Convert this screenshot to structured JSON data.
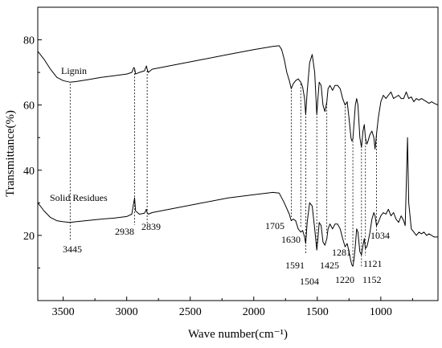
{
  "chart_data": {
    "type": "line",
    "title": "",
    "xlabel": "Wave number(cm⁻¹)",
    "ylabel": "Transmittance(%)",
    "xlim": [
      3700,
      550
    ],
    "ylim": [
      0,
      90
    ],
    "x_reversed": true,
    "grid": false,
    "xticks": [
      3500,
      3000,
      2500,
      2000,
      1500,
      1000
    ],
    "yticks": [
      20,
      40,
      60,
      80
    ],
    "series": [
      {
        "name": "Lignin",
        "x": [
          3700,
          3650,
          3600,
          3550,
          3500,
          3445,
          3400,
          3300,
          3200,
          3100,
          3000,
          2960,
          2945,
          2938,
          2930,
          2900,
          2860,
          2845,
          2839,
          2830,
          2800,
          2600,
          2400,
          2200,
          2000,
          1850,
          1800,
          1780,
          1760,
          1740,
          1720,
          1705,
          1690,
          1670,
          1650,
          1630,
          1615,
          1600,
          1591,
          1580,
          1560,
          1540,
          1520,
          1510,
          1504,
          1495,
          1485,
          1470,
          1455,
          1440,
          1425,
          1415,
          1400,
          1380,
          1360,
          1340,
          1320,
          1300,
          1281,
          1265,
          1250,
          1235,
          1228,
          1220,
          1210,
          1200,
          1190,
          1180,
          1165,
          1152,
          1140,
          1130,
          1121,
          1110,
          1100,
          1085,
          1070,
          1055,
          1045,
          1034,
          1020,
          1000,
          980,
          960,
          940,
          920,
          900,
          880,
          860,
          840,
          820,
          800,
          780,
          760,
          740,
          720,
          700,
          680,
          660,
          640,
          620,
          600,
          580,
          550
        ],
        "y": [
          76.5,
          74,
          71,
          68.5,
          67.5,
          67,
          67.2,
          67.8,
          68.5,
          69,
          69.5,
          70,
          71.5,
          71.2,
          69.5,
          70,
          70.5,
          72,
          71,
          70,
          71,
          72.5,
          74,
          75.5,
          77,
          78,
          78.2,
          77,
          74,
          70,
          67.5,
          65,
          66.5,
          67.5,
          68,
          67,
          65.5,
          62,
          57,
          64,
          73,
          75.5,
          70,
          62,
          57,
          62,
          67,
          66,
          60,
          58,
          61,
          65,
          66,
          64.5,
          66,
          66,
          65,
          62,
          60,
          61,
          56,
          50,
          49,
          49.5,
          55,
          60,
          62,
          60,
          50,
          47,
          52,
          54,
          50,
          48,
          49,
          51,
          52,
          50,
          46.5,
          51,
          56,
          61,
          63,
          62,
          63,
          64,
          62,
          62.5,
          63,
          62,
          62,
          64,
          62,
          62.5,
          61,
          62,
          61.5,
          62,
          61.5,
          61,
          60.5,
          61,
          60.5,
          60
        ]
      },
      {
        "name": "Solid Residues",
        "x": [
          3700,
          3650,
          3600,
          3550,
          3500,
          3445,
          3400,
          3300,
          3200,
          3100,
          3000,
          2960,
          2945,
          2938,
          2930,
          2900,
          2860,
          2845,
          2839,
          2830,
          2800,
          2600,
          2400,
          2200,
          2000,
          1850,
          1800,
          1760,
          1720,
          1705,
          1690,
          1670,
          1650,
          1630,
          1615,
          1600,
          1591,
          1580,
          1560,
          1540,
          1520,
          1510,
          1504,
          1495,
          1485,
          1470,
          1455,
          1440,
          1425,
          1415,
          1400,
          1380,
          1360,
          1340,
          1320,
          1300,
          1281,
          1265,
          1250,
          1235,
          1228,
          1220,
          1210,
          1200,
          1190,
          1180,
          1165,
          1152,
          1140,
          1130,
          1121,
          1110,
          1100,
          1085,
          1070,
          1055,
          1045,
          1034,
          1020,
          1000,
          980,
          960,
          940,
          920,
          900,
          880,
          860,
          840,
          820,
          808,
          800,
          790,
          780,
          760,
          740,
          720,
          700,
          680,
          660,
          640,
          620,
          600,
          580,
          550
        ],
        "y": [
          30,
          27.5,
          25.5,
          24.5,
          24.2,
          24,
          24.2,
          24.6,
          25,
          25.3,
          25.8,
          26.5,
          30,
          31.5,
          27.5,
          26.5,
          26.8,
          28,
          27,
          26.5,
          27,
          28.5,
          30,
          31.5,
          32.5,
          33.2,
          33,
          30,
          26.5,
          24.5,
          25,
          24.5,
          22,
          21,
          21.5,
          19.5,
          17.5,
          24,
          30,
          29,
          22,
          18,
          15.5,
          19,
          24,
          23,
          18,
          17,
          19,
          22,
          23.5,
          22,
          23.5,
          23.5,
          22,
          19,
          16.5,
          17.5,
          15,
          12,
          11,
          10.5,
          13,
          17,
          22,
          21,
          15,
          14,
          17,
          19,
          16,
          16.5,
          18,
          21,
          25,
          27,
          26,
          23,
          24,
          26,
          27,
          26.5,
          28,
          26,
          27,
          25,
          24,
          26,
          24.5,
          23,
          35,
          50,
          30,
          22,
          21,
          20,
          21,
          20.5,
          21,
          20,
          20.5,
          20,
          19.5,
          19.5
        ]
      }
    ],
    "annotations": [
      {
        "text": "Lignin",
        "type": "series-label"
      },
      {
        "text": "Solid Residues",
        "type": "series-label"
      },
      {
        "text": "3445",
        "peak": 3445
      },
      {
        "text": "2938",
        "peak": 2938
      },
      {
        "text": "2839",
        "peak": 2839
      },
      {
        "text": "1705",
        "peak": 1705
      },
      {
        "text": "1630",
        "peak": 1630
      },
      {
        "text": "1591",
        "peak": 1591
      },
      {
        "text": "1504",
        "peak": 1504
      },
      {
        "text": "1425",
        "peak": 1425
      },
      {
        "text": "1281",
        "peak": 1281
      },
      {
        "text": "1220",
        "peak": 1220
      },
      {
        "text": "1152",
        "peak": 1152
      },
      {
        "text": "1121",
        "peak": 1121
      },
      {
        "text": "1034",
        "peak": 1034
      }
    ]
  }
}
